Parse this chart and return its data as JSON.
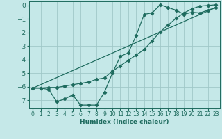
{
  "xlabel": "Humidex (Indice chaleur)",
  "ylabel": "",
  "xlim": [
    -0.5,
    23.5
  ],
  "ylim": [
    -7.6,
    0.3
  ],
  "xticks": [
    0,
    1,
    2,
    3,
    4,
    5,
    6,
    7,
    8,
    9,
    10,
    11,
    12,
    13,
    14,
    15,
    16,
    17,
    18,
    19,
    20,
    21,
    22,
    23
  ],
  "yticks": [
    0,
    -1,
    -2,
    -3,
    -4,
    -5,
    -6,
    -7
  ],
  "bg_color": "#c5e8e8",
  "grid_color": "#a0c8c8",
  "line_color": "#1e6b5e",
  "line1_x": [
    0,
    1,
    2,
    3,
    4,
    5,
    6,
    7,
    8,
    9,
    10,
    11,
    12,
    13,
    14,
    15,
    16,
    17,
    18,
    19,
    20,
    21,
    22,
    23
  ],
  "line1_y": [
    -6.1,
    -6.1,
    -6.2,
    -7.1,
    -6.9,
    -6.6,
    -7.35,
    -7.35,
    -7.35,
    -6.4,
    -5.0,
    -3.75,
    -3.5,
    -2.2,
    -0.65,
    -0.55,
    0.05,
    -0.15,
    -0.35,
    -0.65,
    -0.5,
    -0.55,
    -0.35,
    -0.15
  ],
  "line2_x": [
    0,
    1,
    2,
    3,
    4,
    5,
    6,
    7,
    8,
    9,
    10,
    11,
    12,
    13,
    14,
    15,
    16,
    17,
    18,
    19,
    20,
    21,
    22,
    23
  ],
  "line2_y": [
    -6.1,
    -6.1,
    -6.05,
    -6.05,
    -5.95,
    -5.85,
    -5.75,
    -5.65,
    -5.45,
    -5.35,
    -4.85,
    -4.45,
    -4.05,
    -3.65,
    -3.25,
    -2.6,
    -1.95,
    -1.45,
    -0.95,
    -0.55,
    -0.25,
    -0.05,
    0.0,
    0.05
  ],
  "line3_x": [
    0,
    23
  ],
  "line3_y": [
    -6.1,
    -0.15
  ]
}
